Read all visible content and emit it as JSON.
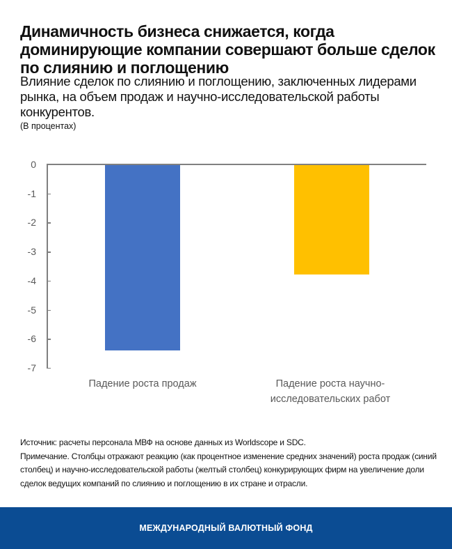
{
  "header": {
    "title": "Динамичность бизнеса снижается, когда доминирующие компании совершают больше сделок по слиянию и поглощению",
    "subtitle": "Влияние сделок по слиянию и поглощению, заключенных лидерами рынка, на объем продаж и научно-исследовательской работы конкурентов.",
    "units": "(В процентах)"
  },
  "chart_data": {
    "type": "bar",
    "title": "Динамичность бизнеса снижается, когда доминирующие компании совершают больше сделок по слиянию и поглощению",
    "subtitle": "Влияние сделок по слиянию и поглощению, заключенных лидерами рынка, на объем продаж и научно-исследовательской работы конкурентов.",
    "xlabel": "",
    "ylabel": "(В процентах)",
    "categories": [
      "Падение роста продаж",
      "Падение роста научно-исследовательских работ"
    ],
    "values": [
      -6.4,
      -3.8
    ],
    "colors": [
      "#4472c4",
      "#ffc000"
    ],
    "ylim": [
      -7,
      0
    ],
    "yticks": [
      "0",
      "-1",
      "-2",
      "-3",
      "-4",
      "-5",
      "-6",
      "-7"
    ],
    "grid": false,
    "legend": "none"
  },
  "chart": {
    "labels": {
      "cat1": "Падение роста продаж",
      "cat2_line1": "Падение роста научно-",
      "cat2_line2": "исследовательских работ"
    }
  },
  "notes": {
    "source": "Источник: расчеты персонала МВФ на основе данных из Worldscope и SDC.",
    "note": "Примечание. Столбцы отражают реакцию (как процентное изменение средних значений) роста продаж (синий столбец) и научно-исследовательской работы (желтый столбец) конкурирующих фирм на увеличение доли сделок ведущих компаний по слиянию и поглощению в их стране и отрасли."
  },
  "footer": {
    "org": "МЕЖДУНАРОДНЫЙ ВАЛЮТНЫЙ ФОНД",
    "color": "#0b4c93"
  }
}
